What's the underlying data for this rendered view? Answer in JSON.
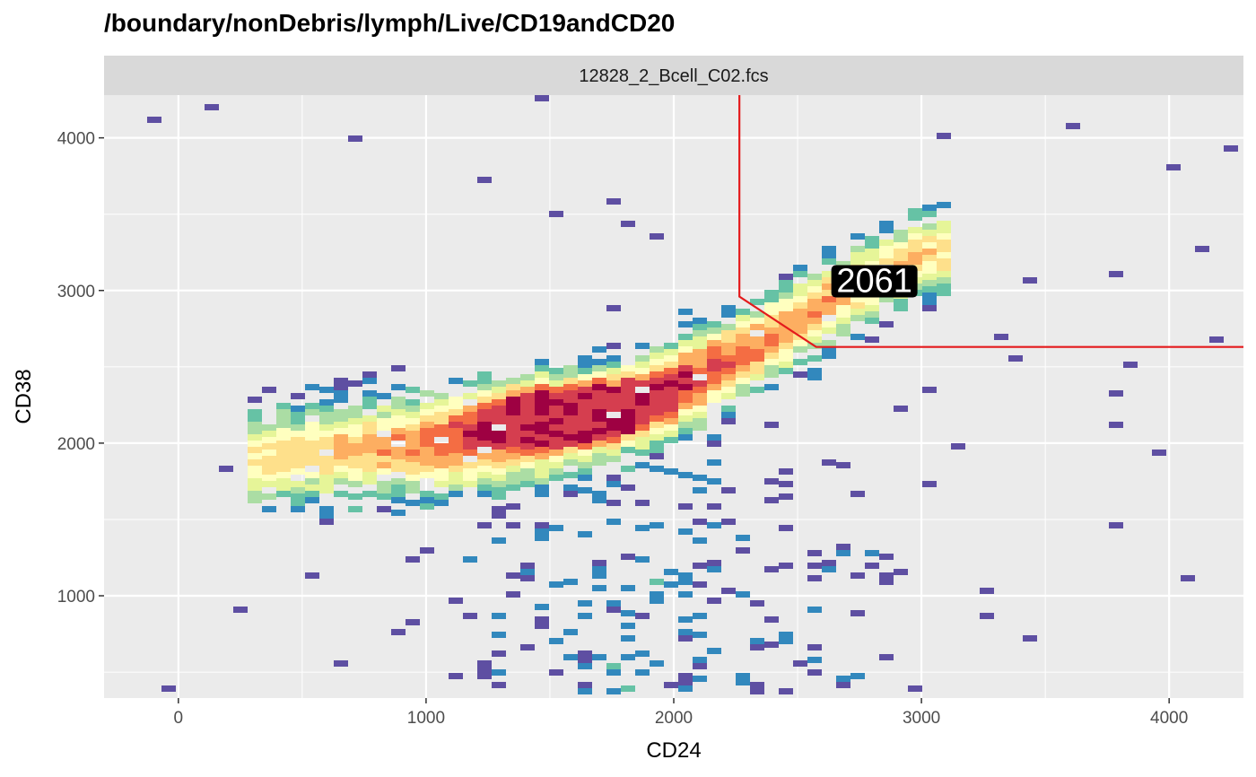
{
  "chart_data": {
    "type": "heatmap",
    "title": "/boundary/nonDebris/lymph/Live/CD19andCD20",
    "facet_label": "12828_2_Bcell_C02.fcs",
    "xlabel": "CD24",
    "ylabel": "CD38",
    "xlim": [
      -300,
      4300
    ],
    "ylim": [
      330,
      4280
    ],
    "x_ticks": [
      0,
      1000,
      2000,
      3000,
      4000
    ],
    "y_ticks": [
      1000,
      2000,
      3000,
      4000
    ],
    "x_tick_labels": [
      "0",
      "1000",
      "2000",
      "3000",
      "4000"
    ],
    "y_tick_labels": [
      "1000",
      "2000",
      "3000",
      "4000"
    ],
    "grid": true,
    "colormap": [
      "#5e4fa2",
      "#3288bd",
      "#66c2a5",
      "#abdda4",
      "#e6f598",
      "#ffffbf",
      "#fee08b",
      "#fdae61",
      "#f46d43",
      "#d53e4f",
      "#9e0142"
    ],
    "density_ridge": [
      [
        300,
        1900
      ],
      [
        700,
        1960
      ],
      [
        1100,
        2020
      ],
      [
        1500,
        2130
      ],
      [
        1800,
        2250
      ],
      [
        2100,
        2450
      ],
      [
        2400,
        2700
      ],
      [
        2700,
        3000
      ],
      [
        3000,
        3250
      ]
    ],
    "peak_region": [
      1600,
      2200
    ],
    "gate": {
      "color": "#e41a1c",
      "path": [
        [
          2265,
          4280
        ],
        [
          2265,
          2960
        ],
        [
          2575,
          2630
        ],
        [
          4300,
          2630
        ]
      ],
      "count_label": "2061",
      "label_position": [
        2810,
        3060
      ]
    }
  }
}
